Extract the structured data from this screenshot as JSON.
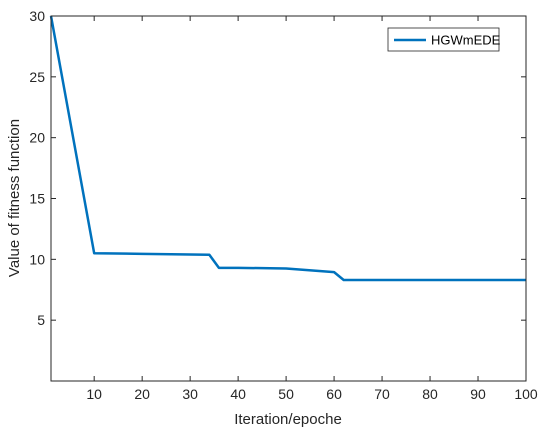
{
  "chart_data": {
    "type": "line",
    "xlabel": "Iteration/epoche",
    "ylabel": "Value of fitness function",
    "xlim": [
      1,
      100
    ],
    "ylim": [
      0,
      30
    ],
    "xticks": [
      10,
      20,
      30,
      40,
      50,
      60,
      70,
      80,
      90,
      100
    ],
    "yticks": [
      5,
      10,
      15,
      20,
      25,
      30
    ],
    "grid": false,
    "legend_position": "top-right",
    "series": [
      {
        "name": "HGWmEDE",
        "color": "#0072BD",
        "x": [
          1,
          10,
          20,
          30,
          34,
          36,
          40,
          50,
          60,
          62,
          70,
          80,
          90,
          100
        ],
        "y": [
          30,
          10.5,
          10.45,
          10.4,
          10.38,
          9.3,
          9.3,
          9.25,
          8.95,
          8.3,
          8.3,
          8.3,
          8.3,
          8.3
        ]
      }
    ]
  }
}
